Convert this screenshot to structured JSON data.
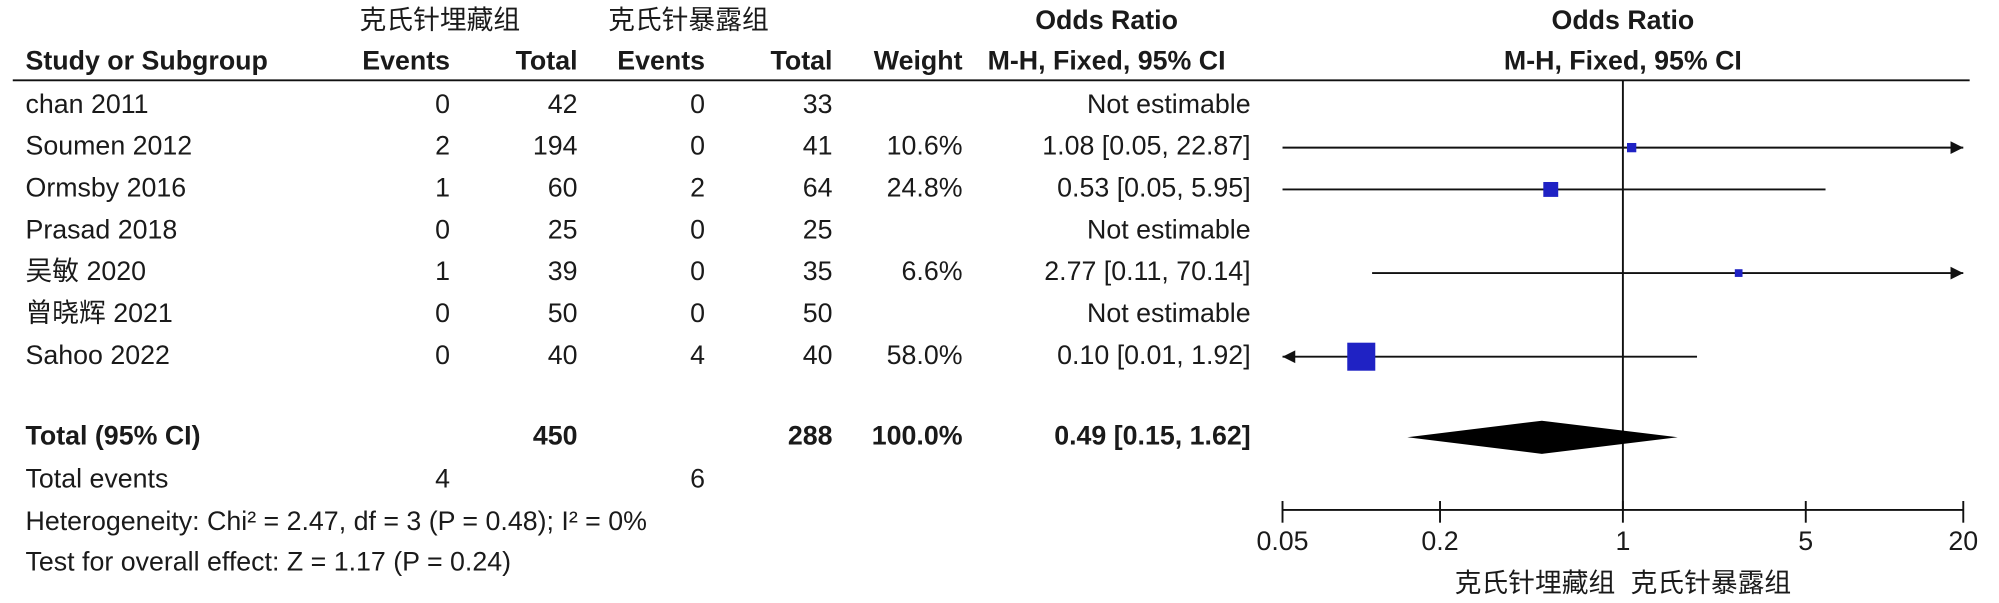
{
  "chart_data": {
    "type": "forest",
    "group_labels": [
      "克氏针埋藏组",
      "克氏针暴露组"
    ],
    "headers": {
      "study": "Study or Subgroup",
      "events": "Events",
      "total": "Total",
      "weight": "Weight",
      "or_title": "Odds Ratio",
      "or_method": "M-H, Fixed, 95% CI"
    },
    "studies": {
      "names": [
        "chan 2011",
        "Soumen 2012",
        "Ormsby 2016",
        "Prasad 2018",
        "吴敏 2020",
        "曾晓辉 2021",
        "Sahoo 2022"
      ],
      "events1": [
        0,
        2,
        1,
        0,
        1,
        0,
        0
      ],
      "total1": [
        42,
        194,
        60,
        25,
        39,
        50,
        40
      ],
      "events2": [
        0,
        0,
        2,
        0,
        0,
        0,
        4
      ],
      "total2": [
        33,
        41,
        64,
        25,
        35,
        50,
        40
      ],
      "weights": [
        null,
        10.6,
        24.8,
        null,
        6.6,
        null,
        58.0
      ],
      "weight_labels": [
        null,
        "10.6%",
        "24.8%",
        null,
        "6.6%",
        null,
        "58.0%"
      ],
      "or": [
        null,
        1.08,
        0.53,
        null,
        2.77,
        null,
        0.1
      ],
      "lo": [
        null,
        0.05,
        0.05,
        null,
        0.11,
        null,
        0.01
      ],
      "hi": [
        null,
        22.87,
        5.95,
        null,
        70.14,
        null,
        1.92
      ],
      "ci_labels": [
        "Not estimable",
        "1.08 [0.05, 22.87]",
        "0.53 [0.05, 5.95]",
        "Not estimable",
        "2.77 [0.11, 70.14]",
        "Not estimable",
        "0.10 [0.01, 1.92]"
      ]
    },
    "total": {
      "label": "Total (95% CI)",
      "total1": 450,
      "total2": 288,
      "weight": 100.0,
      "weight_label": "100.0%",
      "or": 0.49,
      "lo": 0.15,
      "hi": 1.62,
      "ci_label": "0.49 [0.15, 1.62]"
    },
    "total_events": {
      "label": "Total events",
      "events1": 4,
      "events2": 6
    },
    "heterogeneity": "Heterogeneity: Chi² = 2.47, df = 3 (P = 0.48); I² = 0%",
    "overall_effect": "Test for overall effect: Z = 1.17 (P = 0.24)",
    "plot": {
      "title": "Odds Ratio",
      "subtitle": "M-H, Fixed, 95% CI",
      "log_scale": true,
      "xlim": [
        0.05,
        20
      ],
      "xticks": [
        0.05,
        0.2,
        1,
        5,
        20
      ],
      "favours": [
        "克氏针埋藏组",
        "克氏针暴露组"
      ],
      "color": "#1f22c4"
    }
  }
}
